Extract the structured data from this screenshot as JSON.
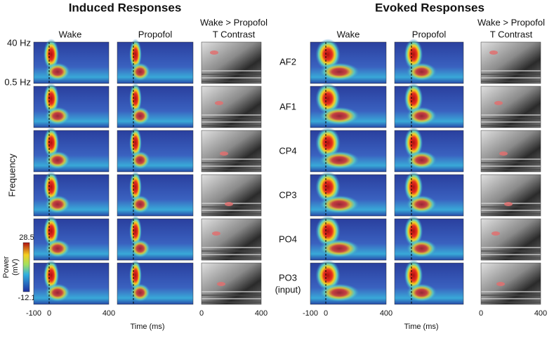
{
  "induced": {
    "title": "Induced Responses",
    "columns": [
      "Wake",
      "Propofol"
    ],
    "contrast_header": [
      "Wake > Propofol",
      "T Contrast"
    ],
    "freq_labels": [
      "40 Hz",
      "0.5 Hz"
    ],
    "y_axis_label": "Frequency",
    "colorbar": {
      "label": [
        "Power",
        "(mV)"
      ],
      "max": "28.5",
      "min": "-12.1"
    },
    "time_ticks": {
      "wake": [
        "-100",
        "0",
        "400"
      ],
      "contrast": [
        "0",
        "400"
      ]
    },
    "x_axis_label": "Time (ms)"
  },
  "evoked": {
    "title": "Evoked Responses",
    "columns": [
      "Wake",
      "Propofol"
    ],
    "contrast_header": [
      "Wake > Propofol",
      "T Contrast"
    ],
    "channels": [
      "AF2",
      "AF1",
      "CP4",
      "CP3",
      "PO4",
      "PO3",
      "(input)"
    ],
    "time_ticks": {
      "wake": [
        "-100",
        "0",
        "400"
      ],
      "contrast": [
        "0",
        "400"
      ]
    },
    "x_axis_label": "Time (ms)"
  }
}
